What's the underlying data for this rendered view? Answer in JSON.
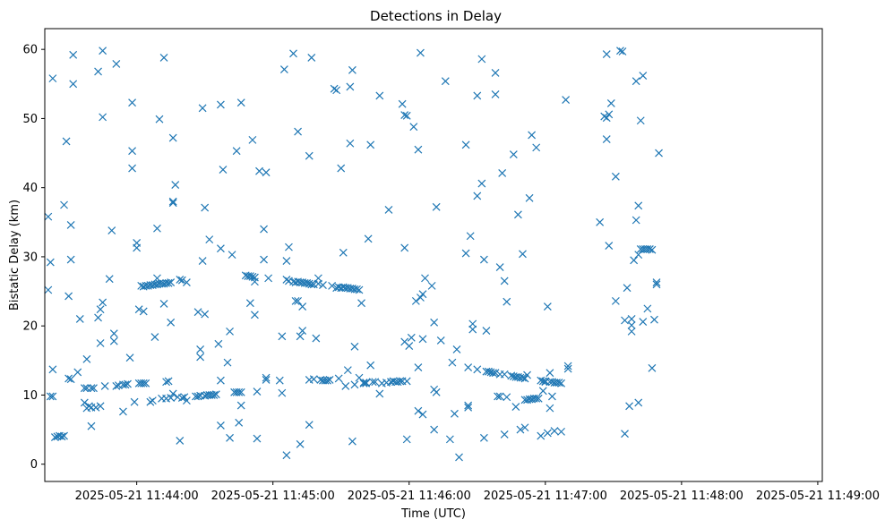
{
  "chart_data": {
    "type": "scatter",
    "title": "Detections in Delay",
    "xlabel": "Time (UTC)",
    "ylabel": "Bistatic Delay (km)",
    "marker": "x",
    "marker_color": "#1f77b4",
    "x_unit": "seconds after 2025-05-21 11:43:00",
    "xlim": [
      19.5,
      362
    ],
    "ylim": [
      -2.5,
      63
    ],
    "x_ticks": [
      {
        "value": 60,
        "label": "2025-05-21 11:44:00"
      },
      {
        "value": 120,
        "label": "2025-05-21 11:45:00"
      },
      {
        "value": 180,
        "label": "2025-05-21 11:46:00"
      },
      {
        "value": 240,
        "label": "2025-05-21 11:47:00"
      },
      {
        "value": 300,
        "label": "2025-05-21 11:48:00"
      },
      {
        "value": 360,
        "label": "2025-05-21 11:49:00"
      }
    ],
    "y_ticks": [
      {
        "value": 0,
        "label": "0"
      },
      {
        "value": 10,
        "label": "10"
      },
      {
        "value": 20,
        "label": "20"
      },
      {
        "value": 30,
        "label": "30"
      },
      {
        "value": 40,
        "label": "40"
      },
      {
        "value": 50,
        "label": "50"
      },
      {
        "value": 60,
        "label": "60"
      }
    ],
    "points": [
      [
        21,
        35.8
      ],
      [
        21,
        25.2
      ],
      [
        22,
        29.2
      ],
      [
        22,
        9.8
      ],
      [
        23,
        9.8
      ],
      [
        23,
        55.8
      ],
      [
        23,
        13.7
      ],
      [
        24,
        3.9
      ],
      [
        25,
        4
      ],
      [
        26,
        4.1
      ],
      [
        27,
        4
      ],
      [
        28,
        4.1
      ],
      [
        28,
        37.5
      ],
      [
        29,
        46.7
      ],
      [
        30,
        24.3
      ],
      [
        30,
        12.4
      ],
      [
        31,
        34.6
      ],
      [
        31,
        29.6
      ],
      [
        31,
        12.3
      ],
      [
        32,
        59.2
      ],
      [
        32,
        55
      ],
      [
        34,
        13.3
      ],
      [
        35,
        21
      ],
      [
        37,
        11
      ],
      [
        37,
        8.9
      ],
      [
        38,
        8.1
      ],
      [
        38,
        15.2
      ],
      [
        38,
        11
      ],
      [
        39,
        8.4
      ],
      [
        40,
        8.2
      ],
      [
        40,
        11
      ],
      [
        40,
        5.5
      ],
      [
        41,
        11
      ],
      [
        42,
        8.2
      ],
      [
        43,
        56.8
      ],
      [
        43,
        21.2
      ],
      [
        44,
        22.4
      ],
      [
        44,
        17.5
      ],
      [
        44,
        8.4
      ],
      [
        45,
        50.2
      ],
      [
        45,
        59.8
      ],
      [
        45,
        23.4
      ],
      [
        46,
        11.3
      ],
      [
        48,
        26.8
      ],
      [
        49,
        33.8
      ],
      [
        50,
        17.8
      ],
      [
        50,
        18.9
      ],
      [
        51,
        57.9
      ],
      [
        51,
        11.3
      ],
      [
        52,
        11.4
      ],
      [
        54,
        11.5
      ],
      [
        54,
        7.6
      ],
      [
        55,
        11.5
      ],
      [
        56,
        11.6
      ],
      [
        57,
        15.4
      ],
      [
        58,
        45.3
      ],
      [
        58,
        42.8
      ],
      [
        58,
        52.3
      ],
      [
        59,
        9
      ],
      [
        60,
        32
      ],
      [
        60,
        31.3
      ],
      [
        61,
        22.4
      ],
      [
        61,
        11.7
      ],
      [
        62,
        11.7
      ],
      [
        62,
        25.8
      ],
      [
        63,
        22.1
      ],
      [
        63,
        11.7
      ],
      [
        63,
        25.7
      ],
      [
        64,
        25.8
      ],
      [
        64,
        11.7
      ],
      [
        65,
        25.8
      ],
      [
        66,
        25.9
      ],
      [
        66,
        9
      ],
      [
        67,
        9.2
      ],
      [
        67,
        25.9
      ],
      [
        68,
        26
      ],
      [
        68,
        18.4
      ],
      [
        69,
        26
      ],
      [
        69,
        34.1
      ],
      [
        69,
        26.9
      ],
      [
        70,
        49.9
      ],
      [
        70,
        26.1
      ],
      [
        71,
        9.5
      ],
      [
        71,
        26.1
      ],
      [
        72,
        23.2
      ],
      [
        72,
        58.8
      ],
      [
        72,
        26.1
      ],
      [
        73,
        26.2
      ],
      [
        73,
        9.5
      ],
      [
        73,
        11.9
      ],
      [
        74,
        26.2
      ],
      [
        74,
        12
      ],
      [
        75,
        26.3
      ],
      [
        75,
        9.6
      ],
      [
        75,
        20.5
      ],
      [
        76,
        47.2
      ],
      [
        76,
        37.8
      ],
      [
        76,
        38
      ],
      [
        76,
        10.2
      ],
      [
        77,
        40.4
      ],
      [
        78,
        9.7
      ],
      [
        79,
        26.7
      ],
      [
        79,
        3.4
      ],
      [
        80,
        26.6
      ],
      [
        80,
        9.6
      ],
      [
        81,
        9.7
      ],
      [
        82,
        9.2
      ],
      [
        82,
        26.3
      ],
      [
        86,
        9.8
      ],
      [
        87,
        22
      ],
      [
        87,
        9.8
      ],
      [
        88,
        9.9
      ],
      [
        88,
        15.5
      ],
      [
        88,
        16.6
      ],
      [
        89,
        51.5
      ],
      [
        89,
        29.4
      ],
      [
        90,
        37.1
      ],
      [
        90,
        9.9
      ],
      [
        90,
        21.7
      ],
      [
        91,
        10
      ],
      [
        92,
        32.5
      ],
      [
        92,
        10
      ],
      [
        93,
        10
      ],
      [
        94,
        10
      ],
      [
        95,
        10.1
      ],
      [
        96,
        17.4
      ],
      [
        97,
        52
      ],
      [
        97,
        31.2
      ],
      [
        97,
        12.1
      ],
      [
        97,
        5.6
      ],
      [
        98,
        42.6
      ],
      [
        100,
        14.7
      ],
      [
        101,
        3.8
      ],
      [
        101,
        19.2
      ],
      [
        102,
        30.3
      ],
      [
        103,
        10.4
      ],
      [
        104,
        45.3
      ],
      [
        104,
        10.4
      ],
      [
        105,
        10.4
      ],
      [
        105,
        6
      ],
      [
        106,
        52.3
      ],
      [
        106,
        10.4
      ],
      [
        106,
        8.5
      ],
      [
        108,
        27.3
      ],
      [
        109,
        27.2
      ],
      [
        110,
        27.2
      ],
      [
        110,
        23.3
      ],
      [
        111,
        27.1
      ],
      [
        111,
        46.9
      ],
      [
        112,
        21.6
      ],
      [
        112,
        27
      ],
      [
        112,
        26.4
      ],
      [
        113,
        3.7
      ],
      [
        113,
        10.5
      ],
      [
        114,
        42.4
      ],
      [
        116,
        34
      ],
      [
        116,
        29.6
      ],
      [
        117,
        42.2
      ],
      [
        117,
        12.2
      ],
      [
        117,
        12.5
      ],
      [
        118,
        26.9
      ],
      [
        123,
        12.1
      ],
      [
        124,
        18.5
      ],
      [
        124,
        10.3
      ],
      [
        125,
        57.1
      ],
      [
        126,
        1.3
      ],
      [
        126,
        29.4
      ],
      [
        126,
        26.7
      ],
      [
        127,
        31.4
      ],
      [
        127,
        26.5
      ],
      [
        129,
        26.4
      ],
      [
        129,
        59.4
      ],
      [
        130,
        26.3
      ],
      [
        130,
        23.6
      ],
      [
        131,
        26.4
      ],
      [
        131,
        48.1
      ],
      [
        131,
        23.6
      ],
      [
        132,
        26.3
      ],
      [
        132,
        2.9
      ],
      [
        132,
        18.5
      ],
      [
        133,
        19.3
      ],
      [
        133,
        26.3
      ],
      [
        133,
        22.8
      ],
      [
        134,
        26.2
      ],
      [
        135,
        26.2
      ],
      [
        136,
        26.1
      ],
      [
        136,
        5.7
      ],
      [
        136,
        44.6
      ],
      [
        136,
        12.2
      ],
      [
        137,
        26
      ],
      [
        137,
        58.8
      ],
      [
        138,
        26
      ],
      [
        138,
        12.3
      ],
      [
        139,
        18.2
      ],
      [
        140,
        26.9
      ],
      [
        140,
        26.1
      ],
      [
        141,
        12.2
      ],
      [
        142,
        25.9
      ],
      [
        142,
        12.1
      ],
      [
        143,
        12.1
      ],
      [
        144,
        12.1
      ],
      [
        145,
        12.2
      ],
      [
        146,
        25.8
      ],
      [
        147,
        54.3
      ],
      [
        148,
        54.1
      ],
      [
        148,
        25.5
      ],
      [
        149,
        12.4
      ],
      [
        149,
        25.6
      ],
      [
        150,
        42.8
      ],
      [
        150,
        25.5
      ],
      [
        151,
        30.6
      ],
      [
        151,
        25.6
      ],
      [
        152,
        11.3
      ],
      [
        152,
        25.5
      ],
      [
        153,
        13.6
      ],
      [
        153,
        25.5
      ],
      [
        154,
        25.4
      ],
      [
        154,
        46.4
      ],
      [
        154,
        54.6
      ],
      [
        155,
        3.3
      ],
      [
        155,
        57
      ],
      [
        155,
        25.4
      ],
      [
        156,
        25.3
      ],
      [
        156,
        17
      ],
      [
        156,
        11.5
      ],
      [
        157,
        25.3
      ],
      [
        158,
        25.2
      ],
      [
        158,
        12.5
      ],
      [
        159,
        23.3
      ],
      [
        160,
        11.7
      ],
      [
        160,
        11.8
      ],
      [
        161,
        11.8
      ],
      [
        161,
        11.7
      ],
      [
        162,
        32.6
      ],
      [
        163,
        14.3
      ],
      [
        163,
        46.2
      ],
      [
        164,
        11.9
      ],
      [
        165,
        11.9
      ],
      [
        167,
        10.2
      ],
      [
        167,
        53.3
      ],
      [
        168,
        11.7
      ],
      [
        170,
        11.8
      ],
      [
        171,
        36.8
      ],
      [
        172,
        11.9
      ],
      [
        172,
        11.9
      ],
      [
        173,
        12
      ],
      [
        174,
        11.9
      ],
      [
        175,
        11.9
      ],
      [
        176,
        12
      ],
      [
        177,
        52.1
      ],
      [
        177,
        12
      ],
      [
        178,
        50.5
      ],
      [
        178,
        31.3
      ],
      [
        178,
        17.7
      ],
      [
        179,
        50.4
      ],
      [
        179,
        12
      ],
      [
        179,
        3.6
      ],
      [
        180,
        17.1
      ],
      [
        181,
        18.3
      ],
      [
        182,
        48.8
      ],
      [
        183,
        23.6
      ],
      [
        184,
        45.5
      ],
      [
        184,
        7.7
      ],
      [
        184,
        14
      ],
      [
        185,
        59.5
      ],
      [
        185,
        24.1
      ],
      [
        186,
        24.6
      ],
      [
        186,
        7.2
      ],
      [
        186,
        18.1
      ],
      [
        187,
        26.9
      ],
      [
        190,
        25.8
      ],
      [
        191,
        20.5
      ],
      [
        191,
        10.8
      ],
      [
        191,
        5
      ],
      [
        192,
        37.2
      ],
      [
        192,
        10.4
      ],
      [
        194,
        17.9
      ],
      [
        196,
        55.4
      ],
      [
        198,
        3.6
      ],
      [
        199,
        14.7
      ],
      [
        200,
        7.3
      ],
      [
        201,
        16.6
      ],
      [
        202,
        1
      ],
      [
        205,
        46.2
      ],
      [
        205,
        30.5
      ],
      [
        206,
        14
      ],
      [
        206,
        8.2
      ],
      [
        206,
        8.5
      ],
      [
        207,
        33
      ],
      [
        208,
        19.5
      ],
      [
        208,
        20.3
      ],
      [
        210,
        53.3
      ],
      [
        210,
        38.8
      ],
      [
        210,
        13.7
      ],
      [
        212,
        58.6
      ],
      [
        212,
        40.6
      ],
      [
        213,
        3.8
      ],
      [
        213,
        29.6
      ],
      [
        214,
        13.4
      ],
      [
        214,
        19.3
      ],
      [
        215,
        13.4
      ],
      [
        216,
        13.3
      ],
      [
        217,
        13.2
      ],
      [
        218,
        56.6
      ],
      [
        218,
        53.5
      ],
      [
        218,
        13.2
      ],
      [
        219,
        9.8
      ],
      [
        220,
        13
      ],
      [
        220,
        28.5
      ],
      [
        220,
        9.8
      ],
      [
        221,
        42.1
      ],
      [
        222,
        13
      ],
      [
        222,
        26.5
      ],
      [
        222,
        4.3
      ],
      [
        223,
        23.5
      ],
      [
        223,
        9.7
      ],
      [
        225,
        12.8
      ],
      [
        226,
        12.7
      ],
      [
        226,
        44.8
      ],
      [
        227,
        12.6
      ],
      [
        227,
        8.3
      ],
      [
        228,
        12.6
      ],
      [
        228,
        36.1
      ],
      [
        229,
        12.5
      ],
      [
        229,
        5
      ],
      [
        230,
        30.4
      ],
      [
        230,
        12.5
      ],
      [
        231,
        9.3
      ],
      [
        231,
        5.3
      ],
      [
        231,
        12.4
      ],
      [
        232,
        9.3
      ],
      [
        232,
        12.9
      ],
      [
        233,
        9.4
      ],
      [
        233,
        38.5
      ],
      [
        234,
        47.6
      ],
      [
        234,
        9.4
      ],
      [
        235,
        9.5
      ],
      [
        236,
        45.8
      ],
      [
        236,
        9.5
      ],
      [
        237,
        9.5
      ],
      [
        238,
        12.1
      ],
      [
        238,
        4.1
      ],
      [
        239,
        12
      ],
      [
        239,
        10.6
      ],
      [
        240,
        12
      ],
      [
        240,
        11.9
      ],
      [
        241,
        22.8
      ],
      [
        241,
        4.5
      ],
      [
        242,
        11.9
      ],
      [
        242,
        8.1
      ],
      [
        242,
        13.2
      ],
      [
        243,
        11.9
      ],
      [
        243,
        9.8
      ],
      [
        244,
        11.8
      ],
      [
        244,
        4.8
      ],
      [
        245,
        11.8
      ],
      [
        246,
        11.8
      ],
      [
        247,
        11.7
      ],
      [
        247,
        4.7
      ],
      [
        249,
        52.7
      ],
      [
        250,
        14.2
      ],
      [
        250,
        13.8
      ],
      [
        264,
        35
      ],
      [
        266,
        50.3
      ],
      [
        267,
        59.3
      ],
      [
        267,
        47
      ],
      [
        267,
        50.1
      ],
      [
        268,
        31.6
      ],
      [
        268,
        50.6
      ],
      [
        269,
        52.2
      ],
      [
        271,
        41.6
      ],
      [
        271,
        23.6
      ],
      [
        273,
        59.8
      ],
      [
        274,
        59.7
      ],
      [
        275,
        20.8
      ],
      [
        275,
        4.4
      ],
      [
        276,
        25.5
      ],
      [
        277,
        8.4
      ],
      [
        278,
        21
      ],
      [
        278,
        19.2
      ],
      [
        278,
        20.1
      ],
      [
        279,
        29.5
      ],
      [
        280,
        55.4
      ],
      [
        280,
        35.3
      ],
      [
        281,
        37.4
      ],
      [
        281,
        8.9
      ],
      [
        281,
        30.3
      ],
      [
        282,
        49.7
      ],
      [
        282,
        31.1
      ],
      [
        283,
        56.2
      ],
      [
        283,
        31.1
      ],
      [
        283,
        20.6
      ],
      [
        284,
        31.1
      ],
      [
        285,
        31.1
      ],
      [
        285,
        22.5
      ],
      [
        286,
        31.1
      ],
      [
        287,
        31
      ],
      [
        287,
        13.9
      ],
      [
        288,
        20.9
      ],
      [
        289,
        26.3
      ],
      [
        289,
        26
      ],
      [
        290,
        45
      ]
    ]
  }
}
